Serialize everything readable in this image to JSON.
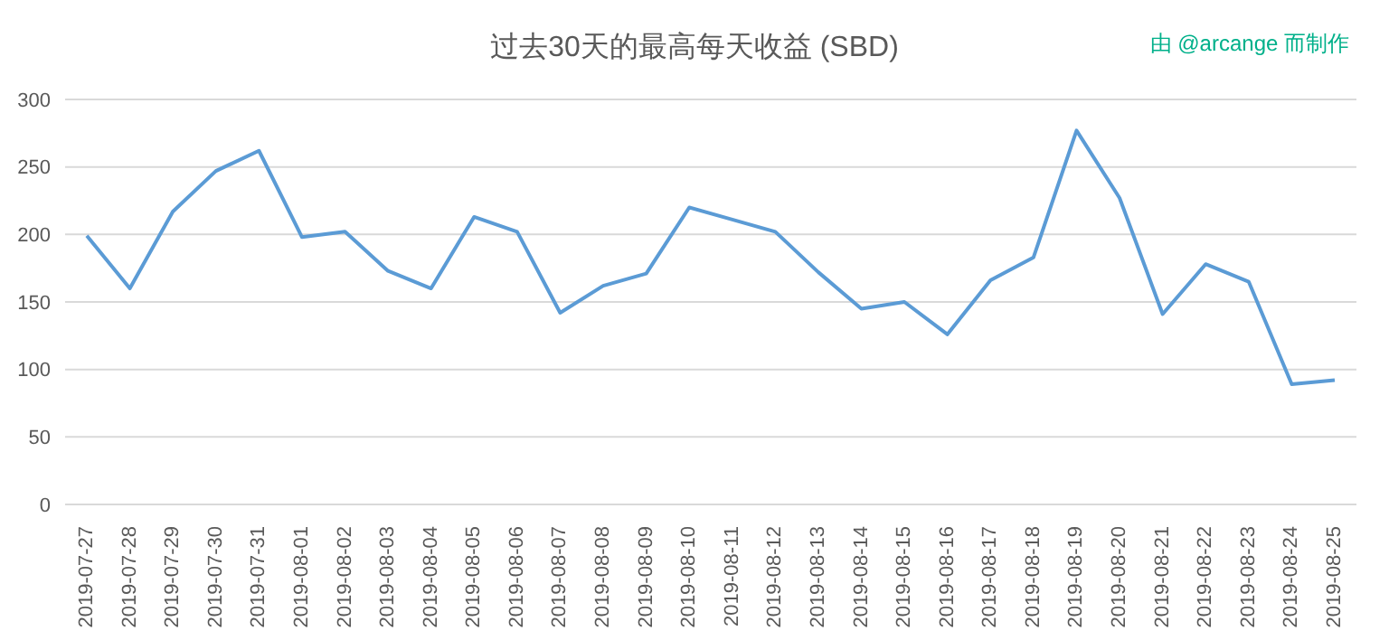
{
  "chart_data": {
    "type": "line",
    "title": "过去30天的最高每天收益 (SBD)",
    "annotations": [
      "由 @arcange 而制作"
    ],
    "categories": [
      "2019-07-27",
      "2019-07-28",
      "2019-07-29",
      "2019-07-30",
      "2019-07-31",
      "2019-08-01",
      "2019-08-02",
      "2019-08-03",
      "2019-08-04",
      "2019-08-05",
      "2019-08-06",
      "2019-08-07",
      "2019-08-08",
      "2019-08-09",
      "2019-08-10",
      "2019-08-11",
      "2019-08-12",
      "2019-08-13",
      "2019-08-14",
      "2019-08-15",
      "2019-08-16",
      "2019-08-17",
      "2019-08-18",
      "2019-08-19",
      "2019-08-20",
      "2019-08-21",
      "2019-08-22",
      "2019-08-23",
      "2019-08-24",
      "2019-08-25"
    ],
    "series": [
      {
        "color": "#5b9bd5",
        "values": [
          199,
          160,
          217,
          247,
          262,
          198,
          202,
          173,
          160,
          213,
          202,
          142,
          162,
          171,
          220,
          211,
          202,
          172,
          145,
          150,
          126,
          166,
          183,
          277,
          227,
          141,
          178,
          165,
          89,
          92
        ]
      }
    ],
    "ylim": [
      0,
      300
    ],
    "yticks": [
      0,
      50,
      100,
      150,
      200,
      250,
      300
    ],
    "grid": "y",
    "marker": "none",
    "line_style": "solid"
  }
}
